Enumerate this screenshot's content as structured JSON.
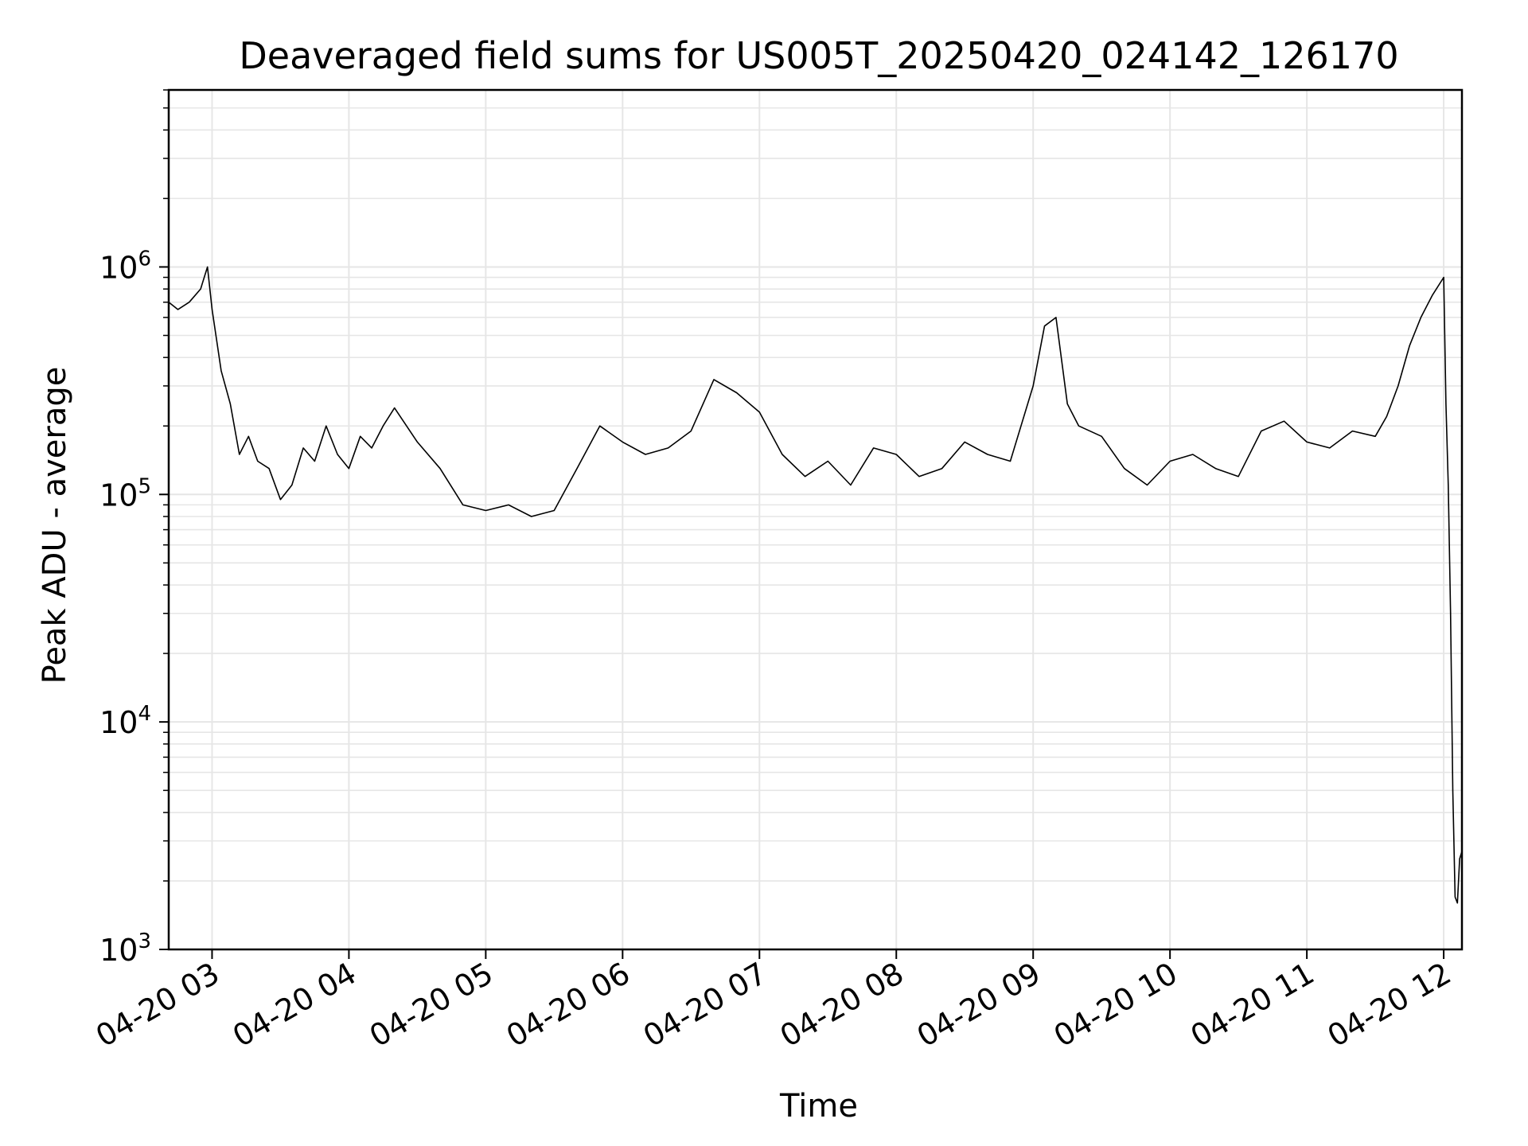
{
  "chart_data": {
    "type": "line",
    "title": "Deaveraged field sums for US005T_20250420_024142_126170",
    "xlabel": "Time",
    "ylabel": "Peak ADU - average",
    "yscale": "log",
    "ylim": [
      1000,
      6000000
    ],
    "xlim": [
      "2025-04-20 02:41",
      "2025-04-20 12:08"
    ],
    "grid": true,
    "line_color": "#000000",
    "grid_color": "#e6e6e6",
    "x_ticks": [
      {
        "t": "2025-04-20 03:00",
        "label": "04-20 03"
      },
      {
        "t": "2025-04-20 04:00",
        "label": "04-20 04"
      },
      {
        "t": "2025-04-20 05:00",
        "label": "04-20 05"
      },
      {
        "t": "2025-04-20 06:00",
        "label": "04-20 06"
      },
      {
        "t": "2025-04-20 07:00",
        "label": "04-20 07"
      },
      {
        "t": "2025-04-20 08:00",
        "label": "04-20 08"
      },
      {
        "t": "2025-04-20 09:00",
        "label": "04-20 09"
      },
      {
        "t": "2025-04-20 10:00",
        "label": "04-20 10"
      },
      {
        "t": "2025-04-20 11:00",
        "label": "04-20 11"
      },
      {
        "t": "2025-04-20 12:00",
        "label": "04-20 12"
      }
    ],
    "y_ticks": [
      {
        "value": 1000,
        "base": "10",
        "exp": "3"
      },
      {
        "value": 10000,
        "base": "10",
        "exp": "4"
      },
      {
        "value": 100000,
        "base": "10",
        "exp": "5"
      },
      {
        "value": 1000000,
        "base": "10",
        "exp": "6"
      }
    ],
    "series": [
      {
        "x": [
          "2025-04-20 02:41",
          "2025-04-20 02:45",
          "2025-04-20 02:50",
          "2025-04-20 02:55",
          "2025-04-20 02:58",
          "2025-04-20 03:00",
          "2025-04-20 03:04",
          "2025-04-20 03:08",
          "2025-04-20 03:12",
          "2025-04-20 03:16",
          "2025-04-20 03:20",
          "2025-04-20 03:25",
          "2025-04-20 03:30",
          "2025-04-20 03:35",
          "2025-04-20 03:40",
          "2025-04-20 03:45",
          "2025-04-20 03:50",
          "2025-04-20 03:55",
          "2025-04-20 04:00",
          "2025-04-20 04:05",
          "2025-04-20 04:10",
          "2025-04-20 04:15",
          "2025-04-20 04:20",
          "2025-04-20 04:30",
          "2025-04-20 04:40",
          "2025-04-20 04:50",
          "2025-04-20 05:00",
          "2025-04-20 05:10",
          "2025-04-20 05:20",
          "2025-04-20 05:30",
          "2025-04-20 05:40",
          "2025-04-20 05:50",
          "2025-04-20 06:00",
          "2025-04-20 06:10",
          "2025-04-20 06:20",
          "2025-04-20 06:30",
          "2025-04-20 06:40",
          "2025-04-20 06:50",
          "2025-04-20 07:00",
          "2025-04-20 07:10",
          "2025-04-20 07:20",
          "2025-04-20 07:30",
          "2025-04-20 07:40",
          "2025-04-20 07:50",
          "2025-04-20 08:00",
          "2025-04-20 08:10",
          "2025-04-20 08:20",
          "2025-04-20 08:30",
          "2025-04-20 08:40",
          "2025-04-20 08:50",
          "2025-04-20 09:00",
          "2025-04-20 09:05",
          "2025-04-20 09:10",
          "2025-04-20 09:15",
          "2025-04-20 09:20",
          "2025-04-20 09:30",
          "2025-04-20 09:40",
          "2025-04-20 09:50",
          "2025-04-20 10:00",
          "2025-04-20 10:10",
          "2025-04-20 10:20",
          "2025-04-20 10:30",
          "2025-04-20 10:40",
          "2025-04-20 10:50",
          "2025-04-20 11:00",
          "2025-04-20 11:10",
          "2025-04-20 11:20",
          "2025-04-20 11:30",
          "2025-04-20 11:35",
          "2025-04-20 11:40",
          "2025-04-20 11:45",
          "2025-04-20 11:50",
          "2025-04-20 11:55",
          "2025-04-20 12:00",
          "2025-04-20 12:01",
          "2025-04-20 12:02",
          "2025-04-20 12:03",
          "2025-04-20 12:04",
          "2025-04-20 12:05",
          "2025-04-20 12:06",
          "2025-04-20 12:07",
          "2025-04-20 12:08"
        ],
        "y": [
          700000,
          650000,
          700000,
          800000,
          1000000,
          650000,
          350000,
          250000,
          150000,
          180000,
          140000,
          130000,
          95000,
          110000,
          160000,
          140000,
          200000,
          150000,
          130000,
          180000,
          160000,
          200000,
          240000,
          170000,
          130000,
          90000,
          85000,
          90000,
          80000,
          85000,
          130000,
          200000,
          170000,
          150000,
          160000,
          190000,
          320000,
          280000,
          230000,
          150000,
          120000,
          140000,
          110000,
          160000,
          150000,
          120000,
          130000,
          170000,
          150000,
          140000,
          300000,
          550000,
          600000,
          250000,
          200000,
          180000,
          130000,
          110000,
          140000,
          150000,
          130000,
          120000,
          190000,
          210000,
          170000,
          160000,
          190000,
          180000,
          220000,
          300000,
          450000,
          600000,
          750000,
          900000,
          250000,
          110000,
          30000,
          5000,
          1700,
          1600,
          2500,
          2700
        ]
      }
    ]
  }
}
